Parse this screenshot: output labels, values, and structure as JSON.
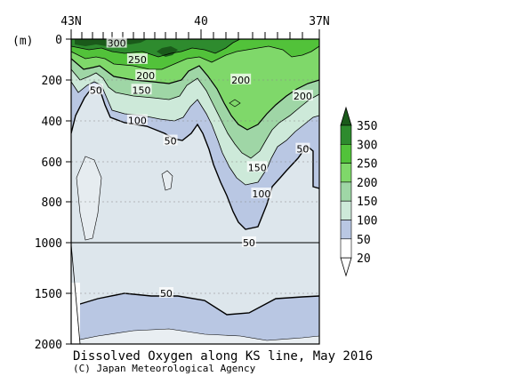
{
  "chart_data": {
    "type": "heatmap",
    "title": "Dissolved Oxygen along KS line, May 2016",
    "credit": "(C) Japan Meteorological Agency",
    "y_unit_label": "(m)",
    "x_ticks": [
      "43N",
      "40",
      "37N"
    ],
    "x_range_lat": [
      43,
      37
    ],
    "y_ticks_upper": [
      "0",
      "200",
      "400",
      "600",
      "800",
      "1000"
    ],
    "y_ticks_lower": [
      "1500",
      "2000"
    ],
    "y_range_m": [
      0,
      2000
    ],
    "colorbar": {
      "levels": [
        "350",
        "300",
        "250",
        "200",
        "150",
        "100",
        "50",
        "20"
      ],
      "colors": [
        "#1a5a1a",
        "#2e8b2e",
        "#52c23a",
        "#7fd86a",
        "#9fd6a6",
        "#cde9d9",
        "#b9c7e3",
        "#ffffff"
      ]
    },
    "contour_labels": [
      {
        "text": "300",
        "lat": 41.9,
        "depth_m": 20
      },
      {
        "text": "250",
        "lat": 41.4,
        "depth_m": 100
      },
      {
        "text": "200",
        "lat": 41.2,
        "depth_m": 180
      },
      {
        "text": "150",
        "lat": 41.3,
        "depth_m": 250
      },
      {
        "text": "50",
        "lat": 42.4,
        "depth_m": 250
      },
      {
        "text": "100",
        "lat": 41.4,
        "depth_m": 400
      },
      {
        "text": "50",
        "lat": 40.6,
        "depth_m": 500
      },
      {
        "text": "200",
        "lat": 38.9,
        "depth_m": 200
      },
      {
        "text": "200",
        "lat": 37.4,
        "depth_m": 280
      },
      {
        "text": "50",
        "lat": 37.4,
        "depth_m": 540
      },
      {
        "text": "150",
        "lat": 38.5,
        "depth_m": 630
      },
      {
        "text": "100",
        "lat": 38.4,
        "depth_m": 760
      },
      {
        "text": "50",
        "lat": 38.7,
        "depth_m": 1000
      },
      {
        "text": "50",
        "lat": 40.7,
        "depth_m": 1500
      }
    ]
  }
}
